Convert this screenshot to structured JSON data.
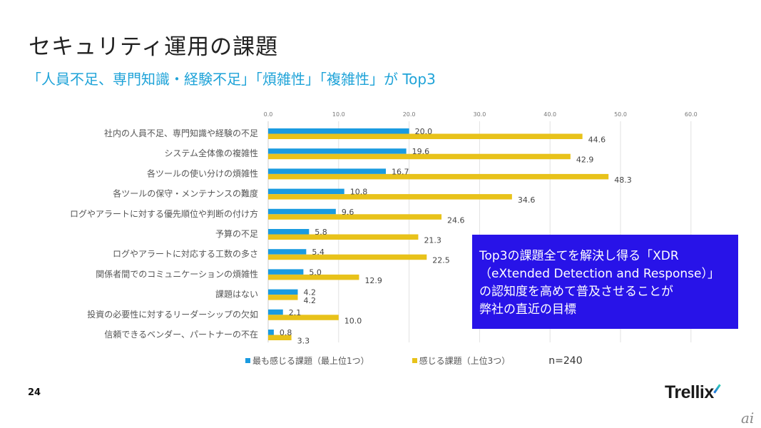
{
  "slide": {
    "title": "セキュリティ運用の課題",
    "subtitle": "「人員不足、専門知識・経験不足」「煩雑性」「複雑性」が Top3",
    "page_number": "24",
    "logo": "Trellix",
    "watermark": "ai",
    "callout": {
      "lines": [
        "Top3の課題全てを解決し得る「XDR",
        "（eXtended Detection and Response）」",
        "の認知度を高めて普及させることが",
        "弊社の直近の目標"
      ],
      "background": "#2813e8"
    },
    "sample_size": "n=240"
  },
  "chart_data": {
    "type": "bar",
    "orientation": "horizontal",
    "title": "",
    "xlabel": "",
    "ylabel": "",
    "xlim": [
      0,
      60
    ],
    "x_ticks": [
      "0.0",
      "10.0",
      "20.0",
      "30.0",
      "40.0",
      "50.0",
      "60.0"
    ],
    "x_tick_values": [
      0,
      10,
      20,
      30,
      40,
      50,
      60
    ],
    "grid": true,
    "legend_position": "bottom",
    "categories": [
      "社内の人員不足、専門知識や経験の不足",
      "システム全体像の複雑性",
      "各ツールの使い分けの煩雑性",
      "各ツールの保守・メンテナンスの難度",
      "ログやアラートに対する優先順位や判断の付け方",
      "予算の不足",
      "ログやアラートに対応する工数の多さ",
      "関係者間でのコミュニケーションの煩雑性",
      "課題はない",
      "投資の必要性に対するリーダーシップの欠如",
      "信頼できるベンダー、パートナーの不在"
    ],
    "series": [
      {
        "name": "最も感じる課題（最上位1つ）",
        "color": "#1a9be0",
        "values": [
          20.0,
          19.6,
          16.7,
          10.8,
          9.6,
          5.8,
          5.4,
          5.0,
          4.2,
          2.1,
          0.8
        ]
      },
      {
        "name": "感じる課題（上位3つ）",
        "color": "#e8c21a",
        "values": [
          44.6,
          42.9,
          48.3,
          34.6,
          24.6,
          21.3,
          22.5,
          12.9,
          4.2,
          10.0,
          3.3
        ]
      }
    ]
  }
}
